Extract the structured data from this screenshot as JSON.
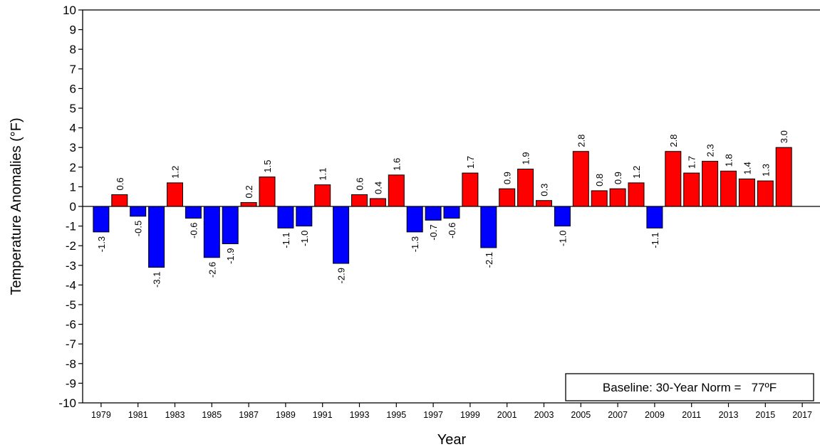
{
  "chart_data": {
    "type": "bar",
    "title": "",
    "xlabel": "Year",
    "ylabel": "Temperature Anomalies (°F)",
    "ylim": [
      -10,
      10
    ],
    "yticks": [
      "10",
      "9",
      "8",
      "7",
      "6",
      "5",
      "4",
      "3",
      "2",
      "1",
      "0",
      "-1",
      "-2",
      "-3",
      "-4",
      "-5",
      "-6",
      "-7",
      "-8",
      "-9",
      "-10"
    ],
    "xtick_labels": [
      "1979",
      "1981",
      "1983",
      "1985",
      "1987",
      "1989",
      "1991",
      "1993",
      "1995",
      "1997",
      "1999",
      "2001",
      "2003",
      "2005",
      "2007",
      "2009",
      "2011",
      "2013",
      "2015",
      "2017"
    ],
    "categories": [
      1979,
      1980,
      1981,
      1982,
      1983,
      1984,
      1985,
      1986,
      1987,
      1988,
      1989,
      1990,
      1991,
      1992,
      1993,
      1994,
      1995,
      1996,
      1997,
      1998,
      1999,
      2000,
      2001,
      2002,
      2003,
      2004,
      2005,
      2006,
      2007,
      2008,
      2009,
      2010,
      2011,
      2012,
      2013,
      2014,
      2015,
      2016
    ],
    "values": [
      -1.3,
      0.6,
      -0.5,
      -3.1,
      1.2,
      -0.6,
      -2.6,
      -1.9,
      0.2,
      1.5,
      -1.1,
      -1.0,
      1.1,
      -2.9,
      0.6,
      0.4,
      1.6,
      -1.3,
      -0.7,
      -0.6,
      1.7,
      -2.1,
      0.9,
      1.9,
      0.3,
      -1.0,
      2.8,
      0.8,
      0.9,
      1.2,
      -1.1,
      2.8,
      1.7,
      2.3,
      1.8,
      1.4,
      1.3,
      3.0
    ],
    "labels": [
      "-1.3",
      "0.6",
      "-0.5",
      "-3.1",
      "1.2",
      "-0.6",
      "-2.6",
      "-1.9",
      "0.2",
      "1.5",
      "-1.1",
      "-1.0",
      "1.1",
      "-2.9",
      "0.6",
      "0.4",
      "1.6",
      "-1.3",
      "-0.7",
      "-0.6",
      "1.7",
      "-2.1",
      "0.9",
      "1.9",
      "0.3",
      "-1.0",
      "2.8",
      "0.8",
      "0.9",
      "1.2",
      "-1.1",
      "2.8",
      "1.7",
      "2.3",
      "1.8",
      "1.4",
      "1.3",
      "3.0"
    ],
    "colors": {
      "positive": "#ff0000",
      "negative": "#0000ff"
    },
    "grid": false,
    "baseline_note": "Baseline: 30-Year Norm =   77ºF"
  }
}
